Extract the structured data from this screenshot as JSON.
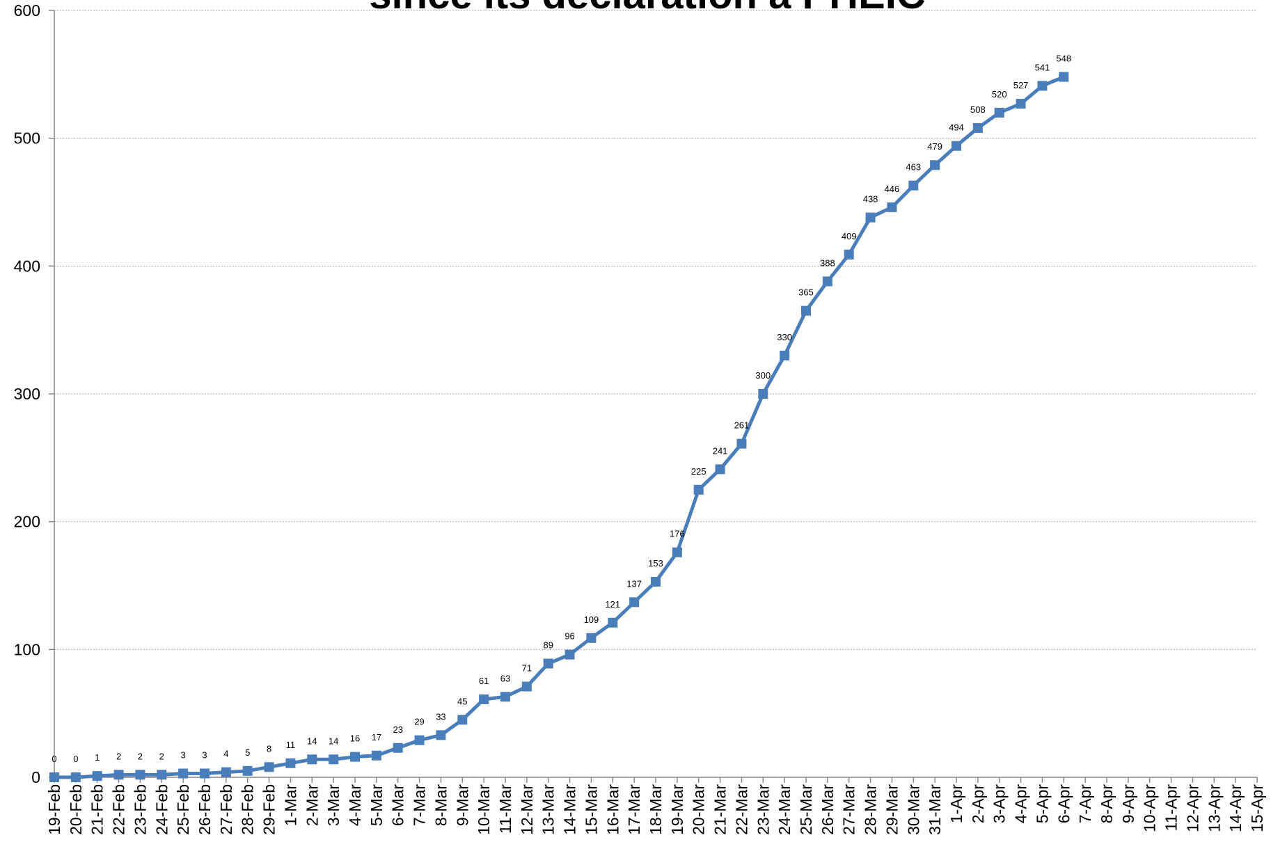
{
  "chart_data": {
    "type": "line",
    "title": "since its declaration a PHEIC",
    "categories": [
      "19-Feb",
      "20-Feb",
      "21-Feb",
      "22-Feb",
      "23-Feb",
      "24-Feb",
      "25-Feb",
      "26-Feb",
      "27-Feb",
      "28-Feb",
      "29-Feb",
      "1-Mar",
      "2-Mar",
      "3-Mar",
      "4-Mar",
      "5-Mar",
      "6-Mar",
      "7-Mar",
      "8-Mar",
      "9-Mar",
      "10-Mar",
      "11-Mar",
      "12-Mar",
      "13-Mar",
      "14-Mar",
      "15-Mar",
      "16-Mar",
      "17-Mar",
      "18-Mar",
      "19-Mar",
      "20-Mar",
      "21-Mar",
      "22-Mar",
      "23-Mar",
      "24-Mar",
      "25-Mar",
      "26-Mar",
      "27-Mar",
      "28-Mar",
      "29-Mar",
      "30-Mar",
      "31-Mar",
      "1-Apr",
      "2-Apr",
      "3-Apr",
      "4-Apr",
      "5-Apr",
      "6-Apr",
      "7-Apr",
      "8-Apr",
      "9-Apr",
      "10-Apr",
      "11-Apr",
      "12-Apr",
      "13-Apr",
      "14-Apr",
      "15-Apr"
    ],
    "values": [
      0,
      0,
      1,
      2,
      2,
      2,
      3,
      3,
      4,
      5,
      8,
      11,
      14,
      14,
      16,
      17,
      23,
      29,
      33,
      45,
      61,
      63,
      71,
      89,
      96,
      109,
      121,
      137,
      153,
      176,
      225,
      241,
      261,
      300,
      330,
      365,
      388,
      409,
      438,
      446,
      463,
      479,
      494,
      508,
      520,
      527,
      541,
      548,
      null,
      null,
      null,
      null,
      null,
      null,
      null,
      null,
      null
    ],
    "color": "#4a7ebb",
    "ylim": [
      0,
      600
    ],
    "yticks": [
      0,
      100,
      200,
      300,
      400,
      500,
      600
    ],
    "grid": true
  }
}
